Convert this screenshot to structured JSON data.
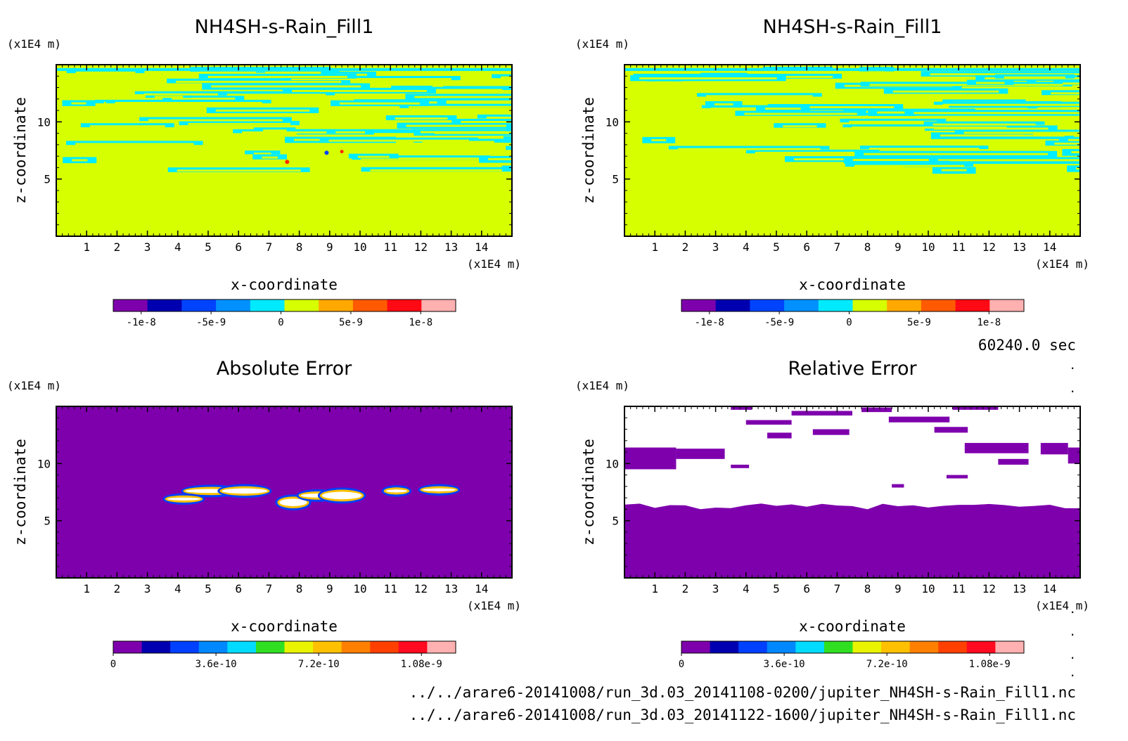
{
  "colors": {
    "background": "#ffffff",
    "field_yellow": "#d6ff00",
    "field_cyan": "#00ecff",
    "error_purple": "#7e00ad",
    "contour_white": "#ffffff",
    "div_palette": [
      "#7e00ad",
      "#0000b0",
      "#0043ff",
      "#0090ff",
      "#00eaff",
      "#d6ff00",
      "#ffa800",
      "#ff5a00",
      "#ff0a14",
      "#ffb0b0"
    ],
    "seq_palette": [
      "#7e00ad",
      "#0000b0",
      "#0040ff",
      "#0088ff",
      "#00dcff",
      "#30e020",
      "#e8f400",
      "#ffc000",
      "#ff8000",
      "#ff4000",
      "#ff0a20",
      "#ffb0b0"
    ]
  },
  "footer": {
    "time_label": "60240.0 sec",
    "file_1": "../../arare6-20141008/run_3d.03_20141108-0200/jupiter_NH4SH-s-Rain_Fill1.nc",
    "file_2": "../../arare6-20141008/run_3d.03_20141122-1600/jupiter_NH4SH-s-Rain_Fill1.nc"
  },
  "chart_data": [
    {
      "type": "heatmap",
      "title": "NH4SH-s-Rain_Fill1",
      "xlabel": "x-coordinate",
      "ylabel": "z-coordinate",
      "x_unit": "(x1E4 m)",
      "y_unit": "(x1E4 m)",
      "xlim": [
        0,
        15
      ],
      "ylim": [
        0,
        15
      ],
      "x_ticks": [
        "1",
        "2",
        "3",
        "4",
        "5",
        "6",
        "7",
        "8",
        "9",
        "10",
        "11",
        "12",
        "13",
        "14"
      ],
      "y_ticks": [
        "5",
        "10"
      ],
      "colorbar": {
        "range": [
          -1.2e-08,
          1.25e-08
        ],
        "levels": 10,
        "tick_labels": [
          "-1e-8",
          "-5e-9",
          "0",
          "5e-9",
          "1e-8"
        ]
      },
      "field": {
        "dominant_value": 0,
        "dominant_color": "yellow",
        "contour_band_color": "cyan",
        "band_z_range": [
          6,
          15
        ]
      }
    },
    {
      "type": "heatmap",
      "title": "NH4SH-s-Rain_Fill1",
      "xlabel": "x-coordinate",
      "ylabel": "z-coordinate",
      "x_unit": "(x1E4 m)",
      "y_unit": "(x1E4 m)",
      "xlim": [
        0,
        15
      ],
      "ylim": [
        0,
        15
      ],
      "x_ticks": [
        "1",
        "2",
        "3",
        "4",
        "5",
        "6",
        "7",
        "8",
        "9",
        "10",
        "11",
        "12",
        "13",
        "14"
      ],
      "y_ticks": [
        "5",
        "10"
      ],
      "colorbar": {
        "range": [
          -1.2e-08,
          1.25e-08
        ],
        "levels": 10,
        "tick_labels": [
          "-1e-8",
          "-5e-9",
          "0",
          "5e-9",
          "1e-8"
        ]
      },
      "field": {
        "dominant_value": 0,
        "dominant_color": "yellow",
        "contour_band_color": "cyan",
        "band_z_range": [
          6,
          15
        ]
      }
    },
    {
      "type": "heatmap",
      "title": "Absolute Error",
      "xlabel": "x-coordinate",
      "ylabel": "z-coordinate",
      "x_unit": "(x1E4 m)",
      "y_unit": "(x1E4 m)",
      "xlim": [
        0,
        15
      ],
      "ylim": [
        0,
        15
      ],
      "x_ticks": [
        "1",
        "2",
        "3",
        "4",
        "5",
        "6",
        "7",
        "8",
        "9",
        "10",
        "11",
        "12",
        "13",
        "14"
      ],
      "y_ticks": [
        "5",
        "10"
      ],
      "colorbar": {
        "range": [
          0,
          1.2e-09
        ],
        "levels": 12,
        "tick_labels": [
          "0",
          "3.6e-10",
          "7.2e-10",
          "1.08e-9"
        ]
      },
      "field": {
        "dominant_value": 0,
        "dominant_color": "purple",
        "blobs_z_range": [
          6.5,
          8
        ]
      }
    },
    {
      "type": "heatmap",
      "title": "Relative Error",
      "xlabel": "x-coordinate",
      "ylabel": "z-coordinate",
      "x_unit": "(x1E4 m)",
      "y_unit": "(x1E4 m)",
      "xlim": [
        0,
        15
      ],
      "ylim": [
        0,
        15
      ],
      "x_ticks": [
        "1",
        "2",
        "3",
        "4",
        "5",
        "6",
        "7",
        "8",
        "9",
        "10",
        "11",
        "12",
        "13",
        "14"
      ],
      "y_ticks": [
        "5",
        "10"
      ],
      "colorbar": {
        "range": [
          0,
          1.2e-09
        ],
        "levels": 12,
        "tick_labels": [
          "0",
          "3.6e-10",
          "7.2e-10",
          "1.08e-9"
        ]
      },
      "field": {
        "dominant_value": 0,
        "dominant_color": "purple",
        "white_region_z_range": [
          6,
          15
        ]
      }
    }
  ]
}
